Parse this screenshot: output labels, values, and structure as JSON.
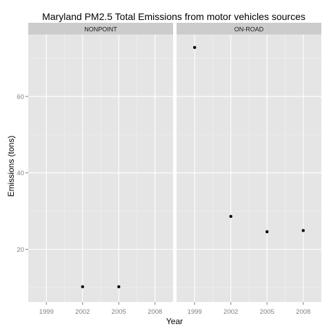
{
  "chart_data": {
    "type": "scatter",
    "title": "Maryland PM2.5 Total Emissions from motor vehicles sources",
    "xlabel": "Year",
    "ylabel": "Emissions (tons)",
    "x_ticks": [
      1999,
      2002,
      2005,
      2008
    ],
    "y_ticks": [
      20,
      40,
      60
    ],
    "xlim": [
      1997.5,
      2009.5
    ],
    "ylim": [
      6.2,
      76.2
    ],
    "grid": true,
    "facets": [
      {
        "label": "NONPOINT",
        "points": [
          {
            "x": 2002,
            "y": 10.2
          },
          {
            "x": 2005,
            "y": 10.2
          }
        ]
      },
      {
        "label": "ON-ROAD",
        "points": [
          {
            "x": 1999,
            "y": 72.8
          },
          {
            "x": 2002,
            "y": 28.6
          },
          {
            "x": 2005,
            "y": 24.6
          },
          {
            "x": 2008,
            "y": 24.9
          }
        ]
      }
    ],
    "colors": {
      "panel_background": "#e5e5e5",
      "strip_background": "#cccccc",
      "grid_major": "#ffffff",
      "grid_minor": "#f2f2f2",
      "point": "#000000",
      "tick_label": "#7f7f7f"
    }
  }
}
